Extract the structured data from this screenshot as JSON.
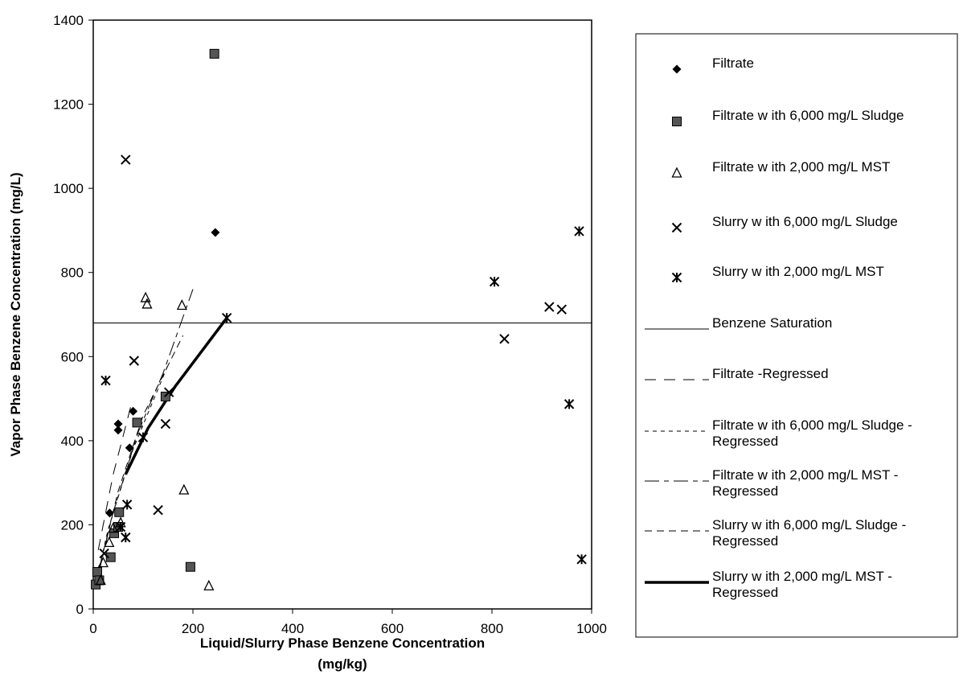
{
  "chart_data": {
    "type": "scatter",
    "xlabel": "Liquid/Slurry Phase Benzene Concentration",
    "xlabel_unit": "(mg/kg)",
    "ylabel": "Vapor Phase Benzene Concentration (mg/L)",
    "xlim": [
      0,
      1000
    ],
    "ylim": [
      0,
      1400
    ],
    "x_ticks": [
      "0",
      "200",
      "400",
      "600",
      "800",
      "1000"
    ],
    "y_ticks": [
      "0",
      "200",
      "400",
      "600",
      "800",
      "1000",
      "1200",
      "1400"
    ],
    "grid": false,
    "legend_position": "right",
    "series": [
      {
        "name": "Filtrate",
        "marker": "diamond",
        "points": [
          [
            33,
            228
          ],
          [
            50,
            425
          ],
          [
            50,
            440
          ],
          [
            73,
            383
          ],
          [
            80,
            470
          ],
          [
            245,
            895
          ]
        ]
      },
      {
        "name": "Filtrate w ith 6,000 mg/L Sludge",
        "marker": "square",
        "points": [
          [
            5,
            58
          ],
          [
            8,
            88
          ],
          [
            12,
            68
          ],
          [
            35,
            123
          ],
          [
            42,
            180
          ],
          [
            50,
            195
          ],
          [
            52,
            230
          ],
          [
            88,
            443
          ],
          [
            145,
            505
          ],
          [
            195,
            100
          ],
          [
            243,
            1320
          ]
        ]
      },
      {
        "name": "Filtrate w ith 2,000 mg/L MST",
        "marker": "triangle",
        "points": [
          [
            15,
            68
          ],
          [
            20,
            110
          ],
          [
            32,
            158
          ],
          [
            40,
            192
          ],
          [
            55,
            205
          ],
          [
            105,
            740
          ],
          [
            108,
            725
          ],
          [
            178,
            722
          ],
          [
            182,
            283
          ],
          [
            232,
            55
          ]
        ]
      },
      {
        "name": "Slurry w ith 6,000 mg/L Sludge",
        "marker": "x",
        "points": [
          [
            22,
            132
          ],
          [
            65,
            1068
          ],
          [
            82,
            590
          ],
          [
            130,
            235
          ],
          [
            145,
            440
          ],
          [
            152,
            515
          ],
          [
            825,
            642
          ],
          [
            915,
            718
          ],
          [
            940,
            712
          ]
        ]
      },
      {
        "name": "Slurry w ith 2,000 mg/L MST",
        "marker": "star",
        "points": [
          [
            25,
            543
          ],
          [
            55,
            195
          ],
          [
            65,
            170
          ],
          [
            68,
            248
          ],
          [
            100,
            408
          ],
          [
            268,
            692
          ],
          [
            805,
            778
          ],
          [
            955,
            487
          ],
          [
            975,
            898
          ],
          [
            980,
            118
          ]
        ]
      }
    ],
    "lines": [
      {
        "name": "Benzene Saturation",
        "style": "thin-solid",
        "points": [
          [
            0,
            680
          ],
          [
            1000,
            680
          ]
        ]
      },
      {
        "name": "Filtrate -Regressed",
        "style": "long-dash",
        "points": [
          [
            10,
            140
          ],
          [
            40,
            320
          ],
          [
            75,
            480
          ]
        ]
      },
      {
        "name": "Filtrate w ith 6,000 mg/L Sludge - Regressed",
        "style": "short-dash",
        "points": [
          [
            5,
            60
          ],
          [
            30,
            190
          ],
          [
            80,
            380
          ],
          [
            150,
            580
          ]
        ]
      },
      {
        "name": "Filtrate w ith 2,000 mg/L MST - Regressed",
        "style": "mixed-dash",
        "points": [
          [
            10,
            80
          ],
          [
            40,
            230
          ],
          [
            90,
            420
          ],
          [
            140,
            560
          ],
          [
            200,
            760
          ]
        ]
      },
      {
        "name": "Slurry w ith 6,000 mg/L Sludge - Regressed",
        "style": "dash",
        "points": [
          [
            15,
            110
          ],
          [
            50,
            280
          ],
          [
            100,
            460
          ],
          [
            180,
            650
          ]
        ]
      },
      {
        "name": "Slurry w ith 2,000 mg/L MST - Regressed",
        "style": "thick-solid",
        "points": [
          [
            65,
            320
          ],
          [
            110,
            430
          ],
          [
            165,
            530
          ],
          [
            268,
            692
          ]
        ]
      }
    ]
  },
  "legend": {
    "items": [
      {
        "type": "marker",
        "marker": "diamond",
        "label": [
          "Filtrate"
        ]
      },
      {
        "type": "marker",
        "marker": "square",
        "label": [
          "Filtrate w ith 6,000 mg/L Sludge"
        ]
      },
      {
        "type": "marker",
        "marker": "triangle",
        "label": [
          "Filtrate w ith 2,000 mg/L MST"
        ]
      },
      {
        "type": "marker",
        "marker": "x",
        "label": [
          "Slurry w ith 6,000 mg/L Sludge"
        ]
      },
      {
        "type": "marker",
        "marker": "star",
        "label": [
          "Slurry w ith 2,000 mg/L MST"
        ]
      },
      {
        "type": "line",
        "style": "thin-solid",
        "label": [
          "Benzene Saturation"
        ]
      },
      {
        "type": "line",
        "style": "long-dash",
        "label": [
          "Filtrate -Regressed"
        ]
      },
      {
        "type": "line",
        "style": "short-dash",
        "label": [
          "Filtrate w ith 6,000 mg/L Sludge -",
          "Regressed"
        ]
      },
      {
        "type": "line",
        "style": "mixed-dash",
        "label": [
          "Filtrate w ith 2,000 mg/L MST -",
          "Regressed"
        ]
      },
      {
        "type": "line",
        "style": "dash",
        "label": [
          "Slurry w ith 6,000 mg/L Sludge -",
          "Regressed"
        ]
      },
      {
        "type": "line",
        "style": "thick-solid",
        "label": [
          "Slurry w ith 2,000 mg/L MST -",
          "Regressed"
        ]
      }
    ]
  }
}
